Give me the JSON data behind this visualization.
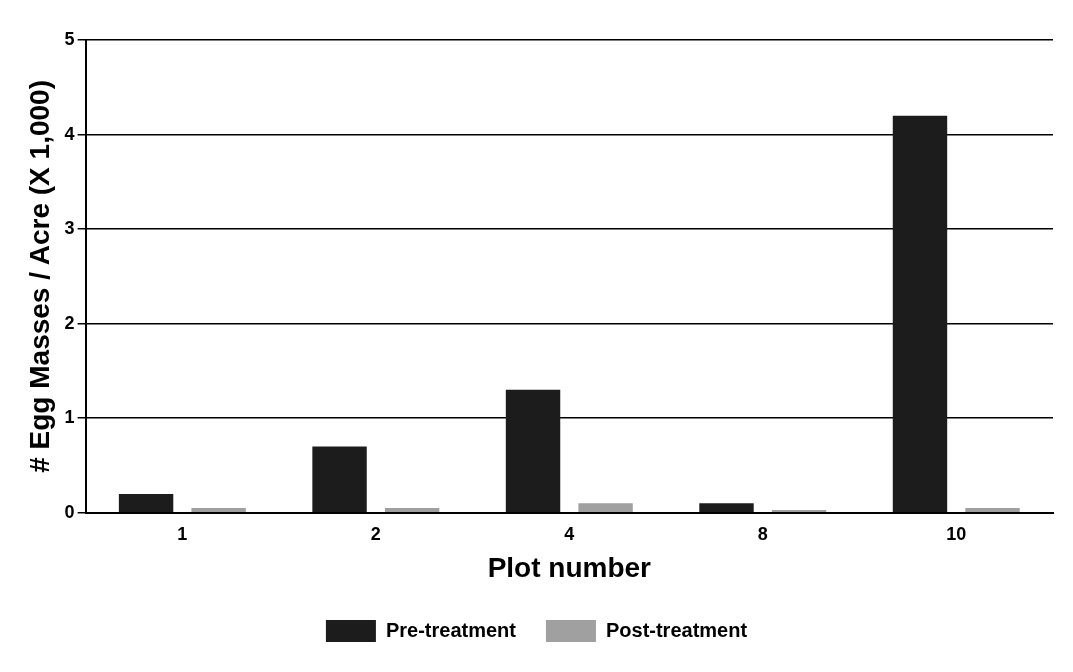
{
  "chart_data": {
    "type": "bar",
    "xlabel": "Plot number",
    "ylabel": "# Egg Masses / Acre (X 1,000)",
    "categories": [
      "1",
      "2",
      "4",
      "8",
      "10"
    ],
    "series": [
      {
        "name": "Pre-treatment",
        "color": "#1c1c1c",
        "values": [
          0.2,
          0.7,
          1.3,
          0.1,
          4.2
        ]
      },
      {
        "name": "Post-treatment",
        "color": "#a0a0a0",
        "values": [
          0.05,
          0.05,
          0.1,
          0.03,
          0.05
        ]
      }
    ],
    "ylim": [
      0,
      5
    ],
    "yticks": [
      0,
      1,
      2,
      3,
      4,
      5
    ],
    "grid": "y",
    "legend": "bottom"
  }
}
